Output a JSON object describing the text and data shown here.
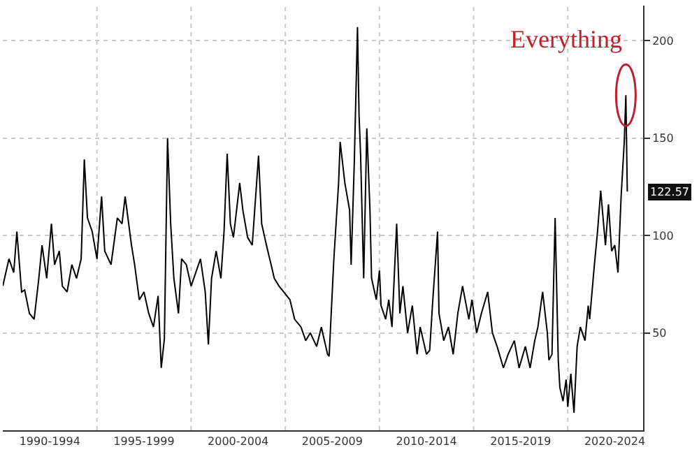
{
  "chart_data": {
    "type": "line",
    "x": [
      "1990-01",
      "1990-05",
      "1990-08",
      "1990-10",
      "1991-01",
      "1991-03",
      "1991-06",
      "1991-09",
      "1991-12",
      "1992-02",
      "1992-05",
      "1992-08",
      "1992-10",
      "1993-01",
      "1993-03",
      "1993-06",
      "1993-09",
      "1993-12",
      "1994-03",
      "1994-05",
      "1994-07",
      "1994-10",
      "1995-01",
      "1995-04",
      "1995-06",
      "1995-10",
      "1996-02",
      "1996-05",
      "1996-07",
      "1996-11",
      "1997-01",
      "1997-04",
      "1997-07",
      "1997-10",
      "1998-01",
      "1998-04",
      "1998-06",
      "1998-08",
      "1998-10",
      "1998-12",
      "1999-02",
      "1999-05",
      "1999-07",
      "1999-10",
      "2000-01",
      "2000-04",
      "2000-07",
      "2000-10",
      "2000-12",
      "2001-02",
      "2001-05",
      "2001-08",
      "2001-10",
      "2001-12",
      "2002-02",
      "2002-04",
      "2002-08",
      "2002-10",
      "2003-01",
      "2003-04",
      "2003-08",
      "2003-10",
      "2004-01",
      "2004-04",
      "2004-06",
      "2004-09",
      "2004-12",
      "2005-04",
      "2005-07",
      "2005-11",
      "2006-02",
      "2006-05",
      "2006-09",
      "2006-12",
      "2007-04",
      "2007-05",
      "2007-08",
      "2007-11",
      "2007-12",
      "2008-03",
      "2008-06",
      "2008-07",
      "2008-09",
      "2008-11",
      "2008-12",
      "2009-01",
      "2009-03",
      "2009-05",
      "2009-07",
      "2009-08",
      "2009-11",
      "2010-01",
      "2010-02",
      "2010-05",
      "2010-07",
      "2010-09",
      "2010-12",
      "2011-02",
      "2011-04",
      "2011-07",
      "2011-10",
      "2012-01",
      "2012-03",
      "2012-07",
      "2012-09",
      "2012-11",
      "2013-02",
      "2013-03",
      "2013-06",
      "2013-09",
      "2013-12",
      "2014-03",
      "2014-06",
      "2014-10",
      "2014-12",
      "2015-03",
      "2015-06",
      "2015-10",
      "2016-01",
      "2016-04",
      "2016-08",
      "2016-11",
      "2017-03",
      "2017-06",
      "2017-10",
      "2018-01",
      "2018-04",
      "2018-06",
      "2018-09",
      "2018-12",
      "2019-01",
      "2019-03",
      "2019-05",
      "2019-07",
      "2019-08",
      "2019-10",
      "2019-12",
      "2020-01",
      "2020-03",
      "2020-05",
      "2020-07",
      "2020-09",
      "2020-12",
      "2021-02",
      "2021-03",
      "2021-06",
      "2021-08",
      "2021-10",
      "2022-01",
      "2022-03",
      "2022-05",
      "2022-07",
      "2022-09",
      "2022-11",
      "2023-01",
      "2023-02",
      "2023-03"
    ],
    "series": [
      {
        "color": "#000000",
        "values": [
          74,
          88,
          81,
          102,
          71,
          72,
          60,
          57,
          78,
          95,
          78,
          106,
          85,
          92,
          74,
          71,
          85,
          78,
          88,
          139,
          109,
          102,
          88,
          120,
          92,
          85,
          109,
          106,
          120,
          95,
          85,
          67,
          71,
          60,
          53,
          69,
          32,
          47,
          150,
          106,
          78,
          60,
          88,
          85,
          74,
          81,
          88,
          71,
          44,
          78,
          92,
          78,
          102,
          142,
          106,
          99,
          127,
          113,
          99,
          95,
          141,
          106,
          95,
          85,
          78,
          74,
          71,
          67,
          57,
          53,
          46,
          50,
          43,
          53,
          39,
          38,
          88,
          127,
          148,
          127,
          113,
          85,
          138,
          207,
          162,
          141,
          78,
          155,
          113,
          78,
          67,
          82,
          64,
          57,
          67,
          53,
          106,
          60,
          74,
          50,
          64,
          39,
          53,
          39,
          41,
          67,
          102,
          60,
          46,
          53,
          39,
          60,
          74,
          57,
          67,
          50,
          60,
          71,
          50,
          43,
          32,
          39,
          46,
          32,
          43,
          32,
          46,
          53,
          71,
          50,
          36,
          39,
          109,
          36,
          22,
          15,
          26,
          12,
          29,
          9,
          43,
          53,
          46,
          64,
          57,
          85,
          102,
          123,
          95,
          116,
          92,
          95,
          81,
          120,
          148,
          172,
          122.57
        ]
      }
    ],
    "xlim": [
      "1990-01",
      "2024-01"
    ],
    "xticks": [
      {
        "value": "1992-07-01",
        "label": "1990-1994"
      },
      {
        "value": "1995-01-01",
        "label": null
      },
      {
        "value": "1997-07-01",
        "label": "1995-1999"
      },
      {
        "value": "2000-01-01",
        "label": null
      },
      {
        "value": "2002-07-01",
        "label": "2000-2004"
      },
      {
        "value": "2005-01-01",
        "label": null
      },
      {
        "value": "2007-07-01",
        "label": "2005-2009"
      },
      {
        "value": "2010-01-01",
        "label": null
      },
      {
        "value": "2012-07-01",
        "label": "2010-2014"
      },
      {
        "value": "2015-01-01",
        "label": null
      },
      {
        "value": "2017-07-01",
        "label": "2015-2019"
      },
      {
        "value": "2020-01-01",
        "label": null
      },
      {
        "value": "2022-07-01",
        "label": "2020-2024"
      }
    ],
    "ylim": [
      0,
      218
    ],
    "yticks": [
      50,
      100,
      150,
      200
    ],
    "grid": true,
    "annotations": [
      {
        "text": "Everything",
        "x": "2023-02",
        "y": 172
      },
      {
        "text": "122.57",
        "y": 122.57
      }
    ]
  }
}
